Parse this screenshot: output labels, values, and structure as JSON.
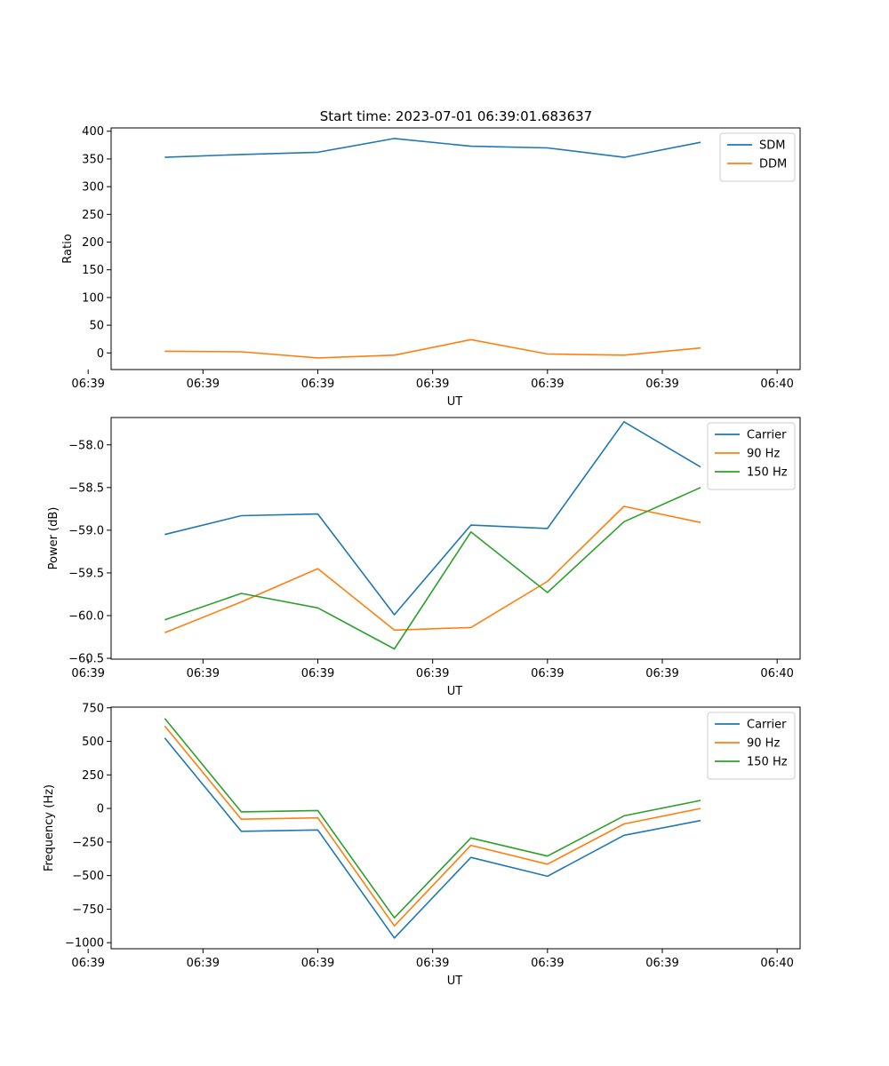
{
  "figure": {
    "title": "Start time: 2023-07-01 06:39:01.683637"
  },
  "chart_data": [
    {
      "type": "line",
      "title": "Start time: 2023-07-01 06:39:01.683637",
      "xlabel": "UT",
      "ylabel": "Ratio",
      "x": [
        1,
        2,
        3,
        4,
        5,
        6,
        7,
        8
      ],
      "xlim": [
        0.3,
        9.3
      ],
      "x_ticks": [
        0,
        1.5,
        3,
        4.5,
        6,
        7.5,
        9
      ],
      "x_tick_labels": [
        "06:39",
        "06:39",
        "06:39",
        "06:39",
        "06:39",
        "06:39",
        "06:40"
      ],
      "ylim": [
        -30,
        406
      ],
      "y_ticks": [
        0,
        50,
        100,
        150,
        200,
        250,
        300,
        350,
        400
      ],
      "y_tick_labels": [
        "0",
        "50",
        "100",
        "150",
        "200",
        "250",
        "300",
        "350",
        "400"
      ],
      "legend_position": "top-right",
      "series": [
        {
          "name": "SDM",
          "color": "#1f77b4",
          "values": [
            353,
            358,
            362,
            387,
            373,
            370,
            353,
            380
          ]
        },
        {
          "name": "DDM",
          "color": "#ff7f0e",
          "values": [
            3,
            2,
            -9,
            -4,
            24,
            -2,
            -4,
            9
          ]
        }
      ]
    },
    {
      "type": "line",
      "title": "",
      "xlabel": "UT",
      "ylabel": "Power (dB)",
      "x": [
        1,
        2,
        3,
        4,
        5,
        6,
        7,
        8
      ],
      "xlim": [
        0.3,
        9.3
      ],
      "x_ticks": [
        0,
        1.5,
        3,
        4.5,
        6,
        7.5,
        9
      ],
      "x_tick_labels": [
        "06:39",
        "06:39",
        "06:39",
        "06:39",
        "06:39",
        "06:39",
        "06:40"
      ],
      "ylim": [
        -60.51,
        -57.68
      ],
      "y_ticks": [
        -58.0,
        -58.5,
        -59.0,
        -59.5,
        -60.0,
        -60.5
      ],
      "y_tick_labels": [
        "−58.0",
        "−58.5",
        "−59.0",
        "−59.5",
        "−60.0",
        "−60.5"
      ],
      "legend_position": "top-right",
      "series": [
        {
          "name": "Carrier",
          "color": "#1f77b4",
          "values": [
            -59.05,
            -58.83,
            -58.81,
            -59.99,
            -58.94,
            -58.98,
            -57.73,
            -58.26
          ]
        },
        {
          "name": "90 Hz",
          "color": "#ff7f0e",
          "values": [
            -60.2,
            -59.84,
            -59.45,
            -60.17,
            -60.14,
            -59.6,
            -58.72,
            -58.91
          ]
        },
        {
          "name": "150 Hz",
          "color": "#2ca02c",
          "values": [
            -60.05,
            -59.74,
            -59.91,
            -60.39,
            -59.02,
            -59.73,
            -58.9,
            -58.5
          ]
        }
      ]
    },
    {
      "type": "line",
      "title": "",
      "xlabel": "UT",
      "ylabel": "Frequency (Hz)",
      "x": [
        1,
        2,
        3,
        4,
        5,
        6,
        7,
        8
      ],
      "xlim": [
        0.3,
        9.3
      ],
      "x_ticks": [
        0,
        1.5,
        3,
        4.5,
        6,
        7.5,
        9
      ],
      "x_tick_labels": [
        "06:39",
        "06:39",
        "06:39",
        "06:39",
        "06:39",
        "06:39",
        "06:40"
      ],
      "ylim": [
        -1045,
        755
      ],
      "y_ticks": [
        750,
        500,
        250,
        0,
        -250,
        -500,
        -750,
        -1000
      ],
      "y_tick_labels": [
        "750",
        "500",
        "250",
        "0",
        "−250",
        "−500",
        "−750",
        "−1000"
      ],
      "legend_position": "top-right",
      "series": [
        {
          "name": "Carrier",
          "color": "#1f77b4",
          "values": [
            525,
            -170,
            -160,
            -965,
            -365,
            -505,
            -200,
            -90
          ]
        },
        {
          "name": "90 Hz",
          "color": "#ff7f0e",
          "values": [
            615,
            -80,
            -70,
            -875,
            -275,
            -415,
            -115,
            0
          ]
        },
        {
          "name": "150 Hz",
          "color": "#2ca02c",
          "values": [
            670,
            -25,
            -15,
            -815,
            -220,
            -355,
            -55,
            60
          ]
        }
      ]
    }
  ]
}
